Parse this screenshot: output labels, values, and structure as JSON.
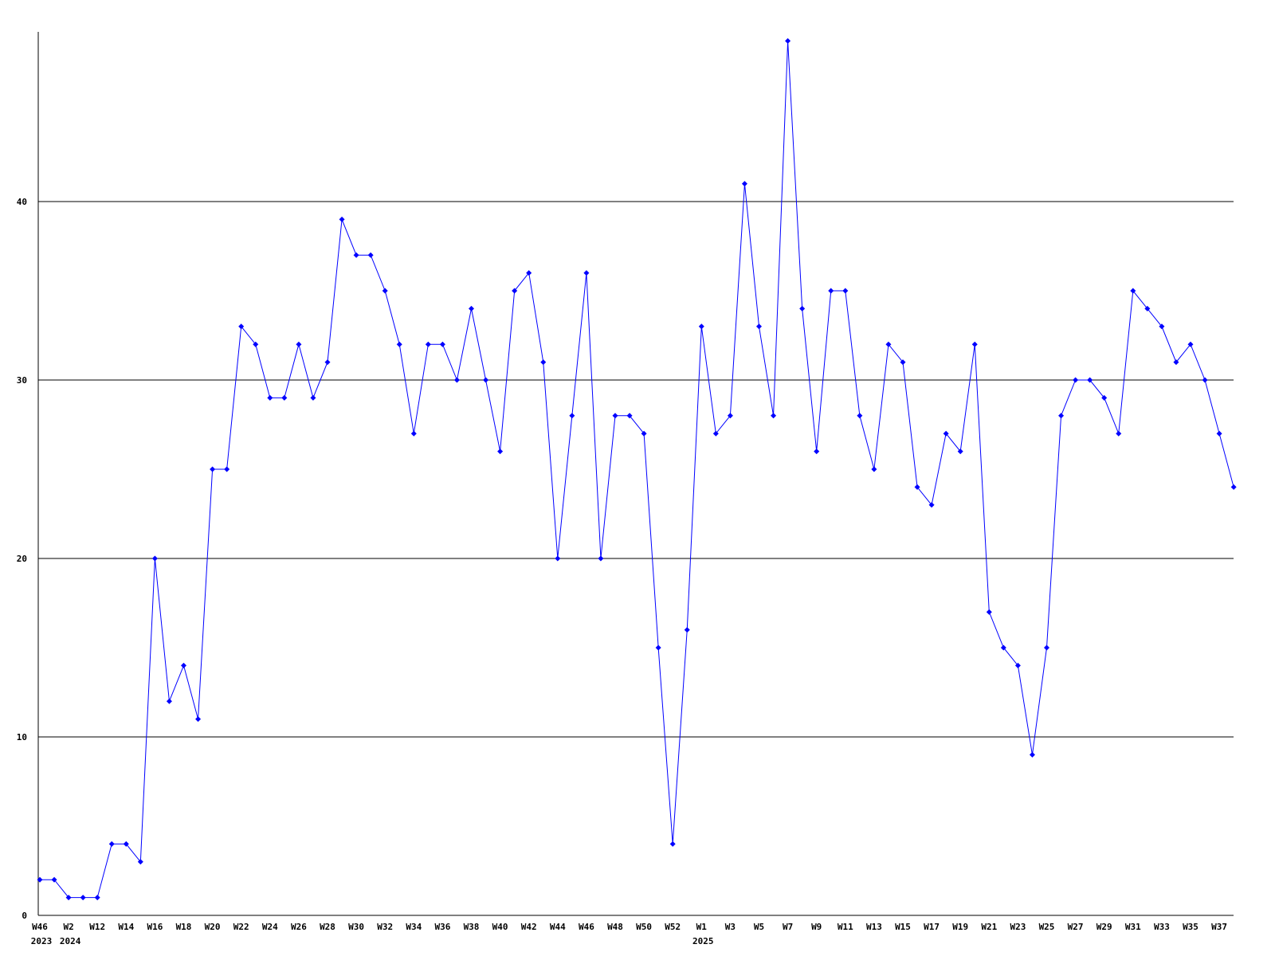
{
  "chart_data": {
    "type": "line",
    "title": "",
    "xlabel": "",
    "ylabel": "",
    "grid": "horizontal",
    "legend": "none",
    "line_color": "#0000ff",
    "marker": "diamond",
    "marker_color": "#0000ff",
    "axis_color": "#000000",
    "background_color": "#ffffff",
    "y_ticks": [
      0,
      10,
      20,
      30,
      40
    ],
    "ylim": [
      0,
      50
    ],
    "label_every": 2,
    "x_tick_labels": [
      {
        "week": "W46",
        "year": "2023"
      },
      {
        "week": "W2",
        "year": "2024"
      },
      {
        "week": "W12"
      },
      {
        "week": "W14"
      },
      {
        "week": "W16"
      },
      {
        "week": "W18"
      },
      {
        "week": "W20"
      },
      {
        "week": "W22"
      },
      {
        "week": "W24"
      },
      {
        "week": "W26"
      },
      {
        "week": "W28"
      },
      {
        "week": "W30"
      },
      {
        "week": "W32"
      },
      {
        "week": "W34"
      },
      {
        "week": "W36"
      },
      {
        "week": "W38"
      },
      {
        "week": "W40"
      },
      {
        "week": "W42"
      },
      {
        "week": "W44"
      },
      {
        "week": "W46"
      },
      {
        "week": "W48"
      },
      {
        "week": "W50"
      },
      {
        "week": "W52"
      },
      {
        "week": "W1",
        "year": "2025"
      },
      {
        "week": "W3"
      },
      {
        "week": "W5"
      },
      {
        "week": "W7"
      },
      {
        "week": "W9"
      },
      {
        "week": "W11"
      },
      {
        "week": "W13"
      },
      {
        "week": "W15"
      },
      {
        "week": "W17"
      },
      {
        "week": "W19"
      },
      {
        "week": "W21"
      },
      {
        "week": "W23"
      },
      {
        "week": "W25"
      },
      {
        "week": "W27"
      },
      {
        "week": "W29"
      },
      {
        "week": "W31"
      },
      {
        "week": "W33"
      },
      {
        "week": "W35"
      },
      {
        "week": "W37"
      }
    ],
    "values": [
      2,
      2,
      1,
      1,
      1,
      4,
      4,
      3,
      20,
      12,
      14,
      11,
      25,
      25,
      33,
      32,
      29,
      29,
      32,
      29,
      31,
      39,
      37,
      37,
      35,
      32,
      27,
      32,
      32,
      30,
      34,
      30,
      26,
      35,
      36,
      31,
      20,
      28,
      36,
      20,
      28,
      28,
      27,
      15,
      4,
      16,
      33,
      27,
      28,
      41,
      33,
      28,
      49,
      34,
      26,
      35,
      35,
      28,
      25,
      32,
      31,
      24,
      23,
      27,
      26,
      32,
      17,
      15,
      14,
      9,
      15,
      28,
      30,
      30,
      29,
      27,
      35,
      34,
      33,
      31,
      32,
      30,
      27,
      24
    ]
  }
}
